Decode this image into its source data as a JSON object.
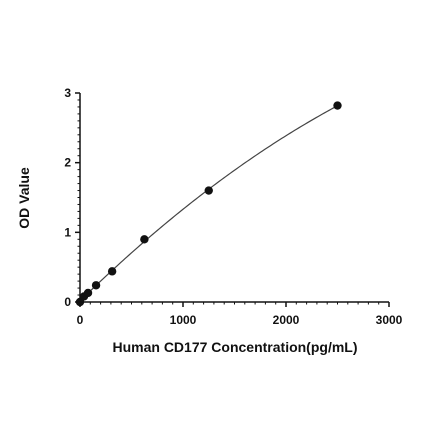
{
  "chart_data": {
    "type": "scatter",
    "title": "",
    "xlabel": "Human CD177 Concentration(pg/mL)",
    "ylabel": "OD Value",
    "xlim": [
      0,
      3000
    ],
    "ylim": [
      0,
      3
    ],
    "x_ticks": [
      "0",
      "1000",
      "2000",
      "3000"
    ],
    "y_ticks": [
      "0",
      "1",
      "2",
      "3"
    ],
    "grid": false,
    "legend": "none",
    "colors": {
      "points": "#111111",
      "curve": "#444444",
      "axes": "#111111"
    },
    "series": [
      {
        "x": [
          0,
          39,
          78,
          156,
          312,
          625,
          1250,
          2500
        ],
        "y": [
          0.0,
          0.08,
          0.13,
          0.24,
          0.44,
          0.9,
          1.6,
          2.82
        ]
      }
    ],
    "fit_curve": true
  }
}
